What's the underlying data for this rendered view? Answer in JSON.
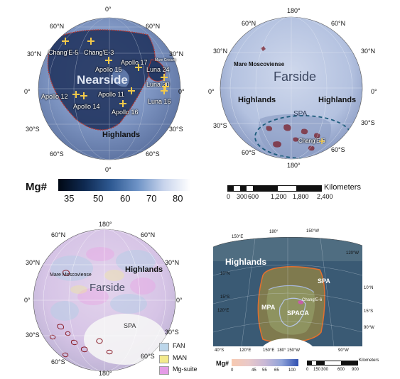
{
  "nearside": {
    "lon_top": "0°",
    "lon_bottom": "0°",
    "lat_0_left": "0°",
    "lat_0_right": "0°",
    "lat_60n_left": "60°N",
    "lat_60n_right": "60°N",
    "lat_30n_left": "30°N",
    "lat_30n_right": "30°N",
    "lat_30s_left": "30°S",
    "lat_30s_right": "30°S",
    "lat_60s_left": "60°S",
    "lat_60s_right": "60°S",
    "title": "Nearside",
    "highlands": "Highlands",
    "sites": [
      "Chang'E-5",
      "Chang'E-3",
      "Apollo 17",
      "Apollo 15",
      "Luna 24",
      "Luna 20",
      "Apollo 12",
      "Apollo 14",
      "Apollo 11",
      "Luna 16",
      "Apollo 16"
    ],
    "mare_crisium": "Mare Crisium"
  },
  "farside": {
    "lon_top": "180°",
    "lon_bottom": "180°",
    "lat_0_left": "0°",
    "lat_0_right": "0°",
    "lat_60n_left": "60°N",
    "lat_60n_right": "60°N",
    "lat_30n_left": "30°N",
    "lat_30n_right": "30°N",
    "lat_30s_left": "30°S",
    "lat_30s_right": "30°S",
    "lat_60s_left": "60°S",
    "lat_60s_right": "60°S",
    "title": "Farside",
    "highlands_left": "Highlands",
    "highlands_right": "Highlands",
    "mare": "Mare Moscoviense",
    "spa": "SPA",
    "site": "Chang'E-6"
  },
  "mg_colorbar": {
    "label": "Mg#",
    "ticks": [
      "35",
      "50",
      "60",
      "70",
      "80"
    ],
    "colors": [
      "#000814",
      "#0f2a52",
      "#2f5a93",
      "#6e93c6",
      "#c8d4ec",
      "#ffffff"
    ]
  },
  "km_scale": {
    "label": "Kilometers",
    "ticks": [
      "0",
      "300",
      "600",
      "1,200",
      "1,800",
      "2,400"
    ]
  },
  "lithology": {
    "lon_top": "180°",
    "lon_bottom": "180°",
    "lat_0_left": "0°",
    "lat_0_right": "0°",
    "lat_60n_left": "60°N",
    "lat_60n_right": "60°N",
    "lat_30n_left": "30°N",
    "lat_30n_right": "30°N",
    "lat_30s_left": "30°S",
    "lat_30s_right": "30°S",
    "lat_60s_left": "60°S",
    "lat_60s_right": "60°S",
    "title": "Farside",
    "highlands": "Highlands",
    "mare": "Mare Moscoviense",
    "spa": "SPA",
    "legend": [
      {
        "label": "FAN",
        "color": "#bcd6ea"
      },
      {
        "label": "MAN",
        "color": "#f3ea8c"
      },
      {
        "label": "Mg-suite",
        "color": "#e49be6"
      }
    ]
  },
  "spa_zoom": {
    "highlands": "Highlands",
    "spa": "SPA",
    "mpa": "MPA",
    "spaca": "SPACA",
    "site": "Chang'E-6",
    "top_labels": [
      "150°E",
      "180°",
      "150°W",
      "120°W"
    ],
    "left_labels": [
      "10°N",
      "15°S",
      "120°E"
    ],
    "right_labels": [
      "10°N",
      "15°S",
      "90°W"
    ],
    "bottom_labels": [
      "40°S",
      "120°E",
      "150°E",
      "180°",
      "150°W",
      "90°W"
    ],
    "mg_label": "Mg#",
    "mg_ticks": [
      "0",
      "45",
      "55",
      "65",
      "100"
    ],
    "mg_colors": [
      "#f7c9b0",
      "#e9c9c9",
      "#c9b8d6",
      "#8fa3d9",
      "#2f4fb0"
    ],
    "km_label": "Kilometers",
    "km_ticks": [
      "0",
      "150",
      "300",
      "600",
      "900"
    ]
  }
}
